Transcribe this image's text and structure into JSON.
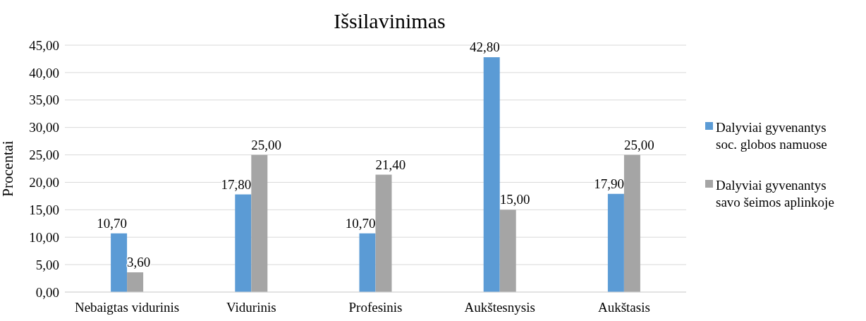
{
  "chart_data": {
    "type": "bar",
    "title": "Išsilavinimas",
    "ylabel": "Procentai",
    "categories": [
      "Nebaigtas vidurinis",
      "Vidurinis",
      "Profesinis",
      "Aukštesnysis",
      "Aukštasis"
    ],
    "series": [
      {
        "name": "Dalyviai gyvenantys soc. globos namuose",
        "color": "#5b9bd5",
        "values": [
          10.7,
          17.8,
          10.7,
          42.8,
          17.9
        ],
        "value_labels": [
          "10,70",
          "17,80",
          "10,70",
          "42,80",
          "17,90"
        ]
      },
      {
        "name": "Dalyviai gyvenantys savo šeimos aplinkoje",
        "color": "#a5a5a5",
        "values": [
          3.6,
          25,
          21.4,
          15,
          25
        ],
        "value_labels": [
          "3,60",
          "25,00",
          "21,40",
          "15,00",
          "25,00"
        ]
      }
    ],
    "ylim": [
      0,
      45
    ],
    "yticks": [
      {
        "value": 0,
        "label": "0,00"
      },
      {
        "value": 5,
        "label": "5,00"
      },
      {
        "value": 10,
        "label": "10,00"
      },
      {
        "value": 15,
        "label": "15,00"
      },
      {
        "value": 20,
        "label": "20,00"
      },
      {
        "value": 25,
        "label": "25,00"
      },
      {
        "value": 30,
        "label": "30,00"
      },
      {
        "value": 35,
        "label": "35,00"
      },
      {
        "value": 40,
        "label": "40,00"
      },
      {
        "value": 45,
        "label": "45,00"
      }
    ],
    "grid": true,
    "legend": "right"
  }
}
